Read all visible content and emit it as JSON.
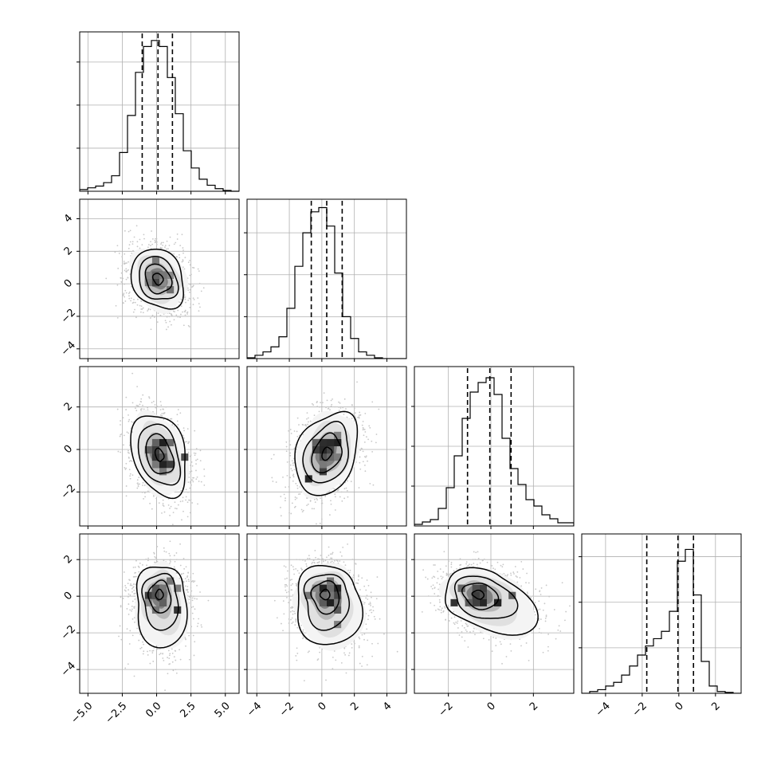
{
  "chart_data": {
    "type": "corner",
    "grid": true,
    "variables": [
      {
        "range": [
          -5.6,
          6.0
        ],
        "ticks": [
          -5.0,
          -2.5,
          0.0,
          2.5,
          5.0
        ],
        "tick_labels": [
          "−5.0",
          "−2.5",
          "0.0",
          "2.5",
          "5.0"
        ]
      },
      {
        "range": [
          -4.6,
          5.2
        ],
        "ticks": [
          -4,
          -2,
          0,
          2,
          4
        ],
        "tick_labels": [
          "−4",
          "−2",
          "0",
          "2",
          "4"
        ]
      },
      {
        "range": [
          -3.6,
          3.9
        ],
        "ticks": [
          -2,
          0,
          2
        ],
        "tick_labels": [
          "−2",
          "0",
          "2"
        ]
      },
      {
        "range": [
          -5.3,
          3.4
        ],
        "ticks": [
          -4,
          -2,
          0,
          2
        ],
        "tick_labels": [
          "−4",
          "−2",
          "0",
          "2"
        ]
      }
    ],
    "histograms": [
      {
        "var": 0,
        "bin_edges": [
          -5.6,
          -5.02,
          -4.44,
          -3.86,
          -3.28,
          -2.7,
          -2.12,
          -1.54,
          -0.96,
          -0.38,
          0.2,
          0.78,
          1.36,
          1.94,
          2.52,
          3.1,
          3.68,
          4.26,
          4.84,
          5.42,
          6.0
        ],
        "counts": [
          2,
          4,
          6,
          10,
          18,
          45,
          88,
          138,
          168,
          175,
          168,
          132,
          90,
          47,
          27,
          14,
          7,
          3,
          1,
          0
        ],
        "ylim": [
          0,
          185
        ],
        "yticks": [
          50,
          100,
          150
        ],
        "quantiles": [
          -1.05,
          0.1,
          1.15
        ]
      },
      {
        "var": 1,
        "bin_edges": [
          -4.6,
          -4.11,
          -3.62,
          -3.13,
          -2.64,
          -2.15,
          -1.66,
          -1.17,
          -0.68,
          -0.19,
          0.3,
          0.79,
          1.28,
          1.77,
          2.26,
          2.75,
          3.24,
          3.73,
          4.22,
          4.71,
          5.2
        ],
        "counts": [
          1,
          4,
          8,
          14,
          26,
          60,
          110,
          150,
          175,
          180,
          158,
          102,
          50,
          24,
          8,
          4,
          1,
          0,
          0,
          0
        ],
        "ylim": [
          0,
          190
        ],
        "yticks": [
          50,
          100,
          150
        ],
        "quantiles": [
          -0.65,
          0.3,
          1.25
        ]
      },
      {
        "var": 2,
        "bin_edges": [
          -3.6,
          -3.225,
          -2.85,
          -2.475,
          -2.1,
          -1.725,
          -1.35,
          -0.975,
          -0.6,
          -0.225,
          0.15,
          0.525,
          0.9,
          1.275,
          1.65,
          2.025,
          2.4,
          2.775,
          3.15,
          3.525,
          3.9
        ],
        "counts": [
          2,
          5,
          8,
          22,
          48,
          88,
          135,
          168,
          180,
          186,
          165,
          110,
          72,
          52,
          33,
          25,
          14,
          9,
          4,
          4
        ],
        "ylim": [
          0,
          200
        ],
        "yticks": [
          50,
          100,
          150
        ],
        "quantiles": [
          -1.1,
          -0.05,
          0.95
        ]
      },
      {
        "var": 3,
        "bin_edges": [
          -5.3,
          -4.865,
          -4.43,
          -3.995,
          -3.56,
          -3.125,
          -2.69,
          -2.255,
          -1.82,
          -1.385,
          -0.95,
          -0.515,
          -0.08,
          0.355,
          0.79,
          1.225,
          1.66,
          2.095,
          2.53,
          2.965,
          3.4
        ],
        "counts": [
          0,
          2,
          4,
          8,
          12,
          20,
          30,
          42,
          52,
          60,
          68,
          90,
          145,
          158,
          108,
          35,
          8,
          2,
          1,
          0
        ],
        "ylim": [
          0,
          175
        ],
        "yticks": [
          50,
          100,
          150
        ],
        "quantiles": [
          -1.75,
          -0.05,
          0.8
        ]
      }
    ],
    "pairs": [
      {
        "x_var": 0,
        "y_var": 1,
        "mean": [
          0.1,
          0.3
        ],
        "sigma": [
          1.05,
          1.0
        ],
        "rho": -0.2,
        "contours": [
          {
            "level": 0.5,
            "r": 0.35
          },
          {
            "level": 1.0,
            "r": 0.9
          },
          {
            "level": 1.5,
            "r": 1.35
          },
          {
            "level": 2.0,
            "r": 1.85
          }
        ]
      },
      {
        "x_var": 0,
        "y_var": 2,
        "mean": [
          0.2,
          -0.25
        ],
        "sigma": [
          1.05,
          1.0
        ],
        "rho": -0.3,
        "contours": [
          {
            "level": 0.5,
            "r": 0.3
          },
          {
            "level": 1.0,
            "r": 0.95
          },
          {
            "level": 1.5,
            "r": 1.45
          },
          {
            "level": 2.0,
            "r": 1.95
          }
        ]
      },
      {
        "x_var": 1,
        "y_var": 2,
        "mean": [
          0.3,
          -0.2
        ],
        "sigma": [
          1.0,
          1.0
        ],
        "rho": 0.28,
        "contours": [
          {
            "level": 0.5,
            "r": 0.3
          },
          {
            "level": 1.0,
            "r": 0.9
          },
          {
            "level": 1.5,
            "r": 1.4
          },
          {
            "level": 2.0,
            "r": 1.95
          }
        ]
      },
      {
        "x_var": 0,
        "y_var": 3,
        "mean": [
          0.2,
          0.1
        ],
        "sigma": [
          0.9,
          0.85
        ],
        "rho": 0.05,
        "skew_dir": [
          0.25,
          -1.0
        ],
        "contours": [
          {
            "level": 0.5,
            "r": 0.3
          },
          {
            "level": 1.0,
            "r": 0.85
          },
          {
            "level": 1.5,
            "r": 1.35
          },
          {
            "level": 2.0,
            "r": 1.9
          }
        ]
      },
      {
        "x_var": 1,
        "y_var": 3,
        "mean": [
          0.2,
          0.1
        ],
        "sigma": [
          0.95,
          0.85
        ],
        "rho": 0.05,
        "skew_dir": [
          0.3,
          -1.0
        ],
        "contours": [
          {
            "level": 0.5,
            "r": 0.3
          },
          {
            "level": 1.0,
            "r": 0.85
          },
          {
            "level": 1.5,
            "r": 1.35
          },
          {
            "level": 2.0,
            "r": 1.9
          }
        ]
      },
      {
        "x_var": 2,
        "y_var": 3,
        "mean": [
          -0.6,
          0.1
        ],
        "sigma": [
          0.85,
          0.75
        ],
        "rho": -0.1,
        "skew_dir": [
          1.0,
          -0.8
        ],
        "contours": [
          {
            "level": 0.5,
            "r": 0.3
          },
          {
            "level": 1.0,
            "r": 0.85
          },
          {
            "level": 1.5,
            "r": 1.35
          },
          {
            "level": 2.0,
            "r": 1.9
          }
        ]
      }
    ]
  }
}
